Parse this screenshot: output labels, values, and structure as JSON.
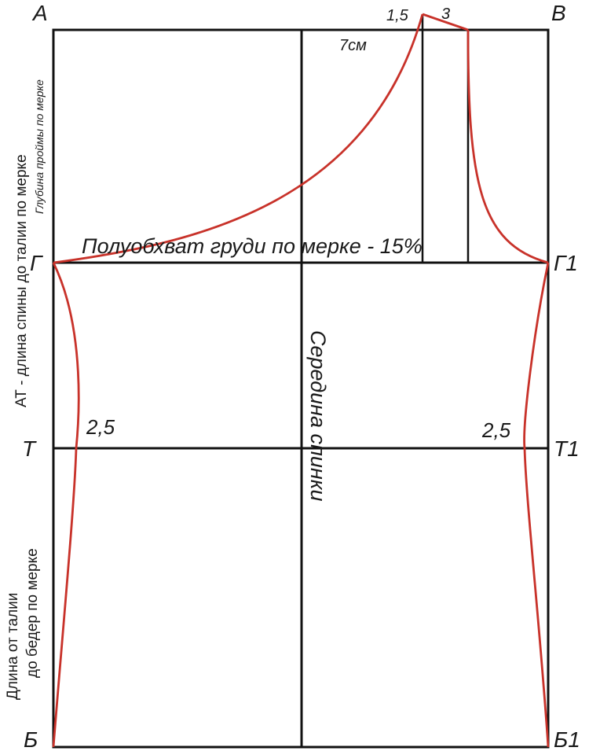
{
  "points": {
    "a": "А",
    "v": "В",
    "g": "Г",
    "g1": "Г1",
    "t": "Т",
    "t1": "Т1",
    "b": "Б",
    "b1": "Б1"
  },
  "dims": {
    "one_five": "1,5",
    "three": "3",
    "seven_cm": "7см",
    "left_waist": "2,5",
    "right_waist": "2,5"
  },
  "labels": {
    "bust": "Полуобхват груди по мерке - 15%",
    "back_middle": "Середина спинки",
    "back_length": "АТ - длина спины до талии по мерке",
    "armhole_depth": "Глубина проймы по мерке",
    "hip_length_1": "Длина от талии",
    "hip_length_2": "до бедер по мерке"
  },
  "colors": {
    "outline": "#111111",
    "pattern": "#c8322a"
  }
}
